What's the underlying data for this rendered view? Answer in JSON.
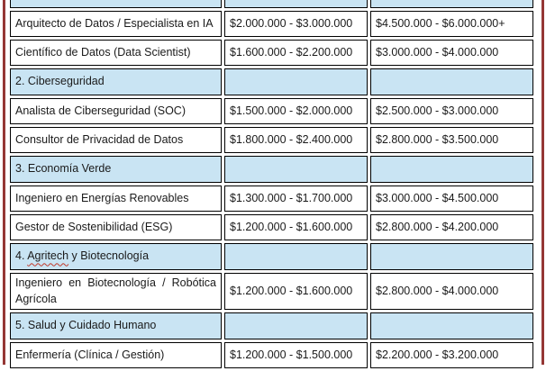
{
  "document": {
    "page_background": "#ffffff",
    "page_border_color": "#953735"
  },
  "table": {
    "section_row_bg": "#c9e4f3",
    "cell_border_color": "#000000",
    "spellcheck_underline_color": "#c0392b",
    "rows": [
      {
        "type": "section",
        "label": ""
      },
      {
        "type": "data",
        "label": "Arquitecto de Datos / Especialista en IA",
        "range_1": "$2.000.000 - $3.000.000",
        "range_2": "$4.500.000 - $6.000.000+"
      },
      {
        "type": "data",
        "label": "Científico de Datos (Data Scientist)",
        "range_1": "$1.600.000 - $2.200.000",
        "range_2": "$3.000.000 - $4.000.000"
      },
      {
        "type": "section",
        "label": "2. Ciberseguridad"
      },
      {
        "type": "data",
        "label": "Analista de Ciberseguridad (SOC)",
        "range_1": "$1.500.000 - $2.000.000",
        "range_2": "$2.500.000 - $3.000.000"
      },
      {
        "type": "data",
        "label": "Consultor de Privacidad de Datos",
        "range_1": "$1.800.000 - $2.400.000",
        "range_2": "$2.800.000 - $3.500.000"
      },
      {
        "type": "section",
        "label": "3. Economía Verde"
      },
      {
        "type": "data",
        "label": "Ingeniero en Energías Renovables",
        "range_1": "$1.300.000 - $1.700.000",
        "range_2": "$3.000.000 - $4.500.000"
      },
      {
        "type": "data",
        "label": "Gestor de Sostenibilidad (ESG)",
        "range_1": "$1.200.000 - $1.600.000",
        "range_2": "$2.800.000 - $4.200.000"
      },
      {
        "type": "section",
        "parts": [
          {
            "text": "4. "
          },
          {
            "text": "Agritech",
            "spellcheck": true
          },
          {
            "text": " y Biotecnología"
          }
        ]
      },
      {
        "type": "data",
        "label": "Ingeniero en Biotecnología / Robótica Agrícola",
        "justify": true,
        "range_1": "$1.200.000 - $1.600.000",
        "range_2": "$2.800.000 - $4.000.000"
      },
      {
        "type": "section",
        "label": "5. Salud y Cuidado Humano"
      },
      {
        "type": "data",
        "label": "Enfermería (Clínica / Gestión)",
        "range_1": "$1.200.000 - $1.500.000",
        "range_2": "$2.200.000 - $3.200.000"
      }
    ]
  }
}
